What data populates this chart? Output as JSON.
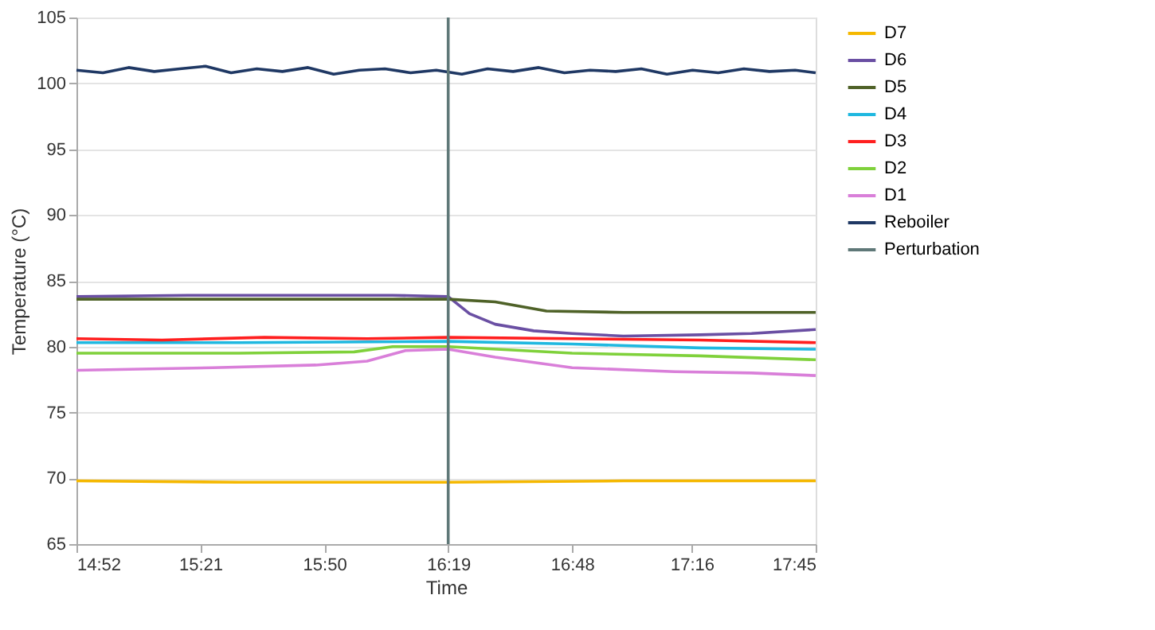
{
  "chart_data": {
    "type": "line",
    "xlabel": "Time",
    "ylabel": "Temperature (°C)",
    "xlim": [
      14.8667,
      17.75
    ],
    "ylim": [
      65,
      105
    ],
    "yticks": [
      65,
      70,
      75,
      80,
      85,
      90,
      95,
      100,
      105
    ],
    "xticks": [
      {
        "value": 14.8667,
        "label": "14:52"
      },
      {
        "value": 15.35,
        "label": "15:21"
      },
      {
        "value": 15.8333,
        "label": "15:50"
      },
      {
        "value": 16.3167,
        "label": "16:19"
      },
      {
        "value": 16.8,
        "label": "16:48"
      },
      {
        "value": 17.2667,
        "label": "17:16"
      },
      {
        "value": 17.75,
        "label": "17:45"
      }
    ],
    "grid": "y",
    "legend": "right",
    "marker": "none",
    "line_style": "solid",
    "series": [
      {
        "name": "D7",
        "color": "#f5b800",
        "x": [
          14.8667,
          15.5,
          16.3167,
          17.0,
          17.75
        ],
        "values": [
          69.8,
          69.7,
          69.7,
          69.8,
          69.8
        ]
      },
      {
        "name": "D6",
        "color": "#6a4fa3",
        "x": [
          14.8667,
          15.3,
          15.8,
          16.1,
          16.3167,
          16.4,
          16.5,
          16.65,
          16.8,
          17.0,
          17.3,
          17.5,
          17.75
        ],
        "values": [
          83.8,
          83.9,
          83.9,
          83.9,
          83.8,
          82.5,
          81.7,
          81.2,
          81.0,
          80.8,
          80.9,
          81.0,
          81.3
        ]
      },
      {
        "name": "D5",
        "color": "#4f6228",
        "x": [
          14.8667,
          15.5,
          16.3167,
          16.5,
          16.7,
          17.0,
          17.3,
          17.75
        ],
        "values": [
          83.6,
          83.6,
          83.6,
          83.4,
          82.7,
          82.6,
          82.6,
          82.6
        ]
      },
      {
        "name": "D4",
        "color": "#1fb8e0",
        "x": [
          14.8667,
          15.5,
          16.3167,
          16.8,
          17.3,
          17.75
        ],
        "values": [
          80.3,
          80.3,
          80.4,
          80.2,
          79.9,
          79.8
        ]
      },
      {
        "name": "D3",
        "color": "#ff1f1f",
        "x": [
          14.8667,
          15.2,
          15.6,
          16.0,
          16.3167,
          16.8,
          17.3,
          17.75
        ],
        "values": [
          80.6,
          80.5,
          80.7,
          80.6,
          80.7,
          80.6,
          80.5,
          80.3
        ]
      },
      {
        "name": "D2",
        "color": "#7fd13b",
        "x": [
          14.8667,
          15.5,
          15.95,
          16.1,
          16.3167,
          16.8,
          17.3,
          17.75
        ],
        "values": [
          79.5,
          79.5,
          79.6,
          80.0,
          80.0,
          79.5,
          79.3,
          79.0
        ]
      },
      {
        "name": "D1",
        "color": "#d97fd9",
        "x": [
          14.8667,
          15.4,
          15.8,
          16.0,
          16.15,
          16.3167,
          16.5,
          16.8,
          17.2,
          17.5,
          17.75
        ],
        "values": [
          78.2,
          78.4,
          78.6,
          78.9,
          79.7,
          79.8,
          79.2,
          78.4,
          78.1,
          78.0,
          77.8
        ]
      },
      {
        "name": "Reboiler",
        "color": "#1f3864",
        "x": [
          14.8667,
          14.97,
          15.07,
          15.17,
          15.27,
          15.37,
          15.47,
          15.57,
          15.67,
          15.77,
          15.87,
          15.97,
          16.07,
          16.17,
          16.27,
          16.37,
          16.47,
          16.57,
          16.67,
          16.77,
          16.87,
          16.97,
          17.07,
          17.17,
          17.27,
          17.37,
          17.47,
          17.57,
          17.67,
          17.75
        ],
        "values": [
          101.0,
          100.8,
          101.2,
          100.9,
          101.1,
          101.3,
          100.8,
          101.1,
          100.9,
          101.2,
          100.7,
          101.0,
          101.1,
          100.8,
          101.0,
          100.7,
          101.1,
          100.9,
          101.2,
          100.8,
          101.0,
          100.9,
          101.1,
          100.7,
          101.0,
          100.8,
          101.1,
          100.9,
          101.0,
          100.8
        ]
      },
      {
        "name": "Perturbation",
        "color": "#5f7878",
        "x": [
          16.3167,
          16.3167
        ],
        "values": [
          65,
          105
        ]
      }
    ]
  }
}
